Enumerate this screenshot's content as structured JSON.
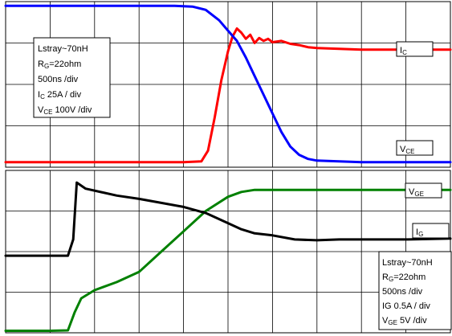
{
  "chart_data": [
    {
      "type": "line",
      "title": "",
      "xlabel": "",
      "ylabel": "",
      "grid": true,
      "xlim": [
        0,
        10
      ],
      "ylim": [
        0,
        4
      ],
      "info_box": {
        "line1": "Lstray~70nH",
        "line2_main": "R",
        "line2_sub": "G",
        "line2_rest": "=22ohm",
        "line3": "500ns /div",
        "line4_main": "I",
        "line4_sub": "C",
        "line4_rest": "  25A / div",
        "line5_main": "V",
        "line5_sub": "CE",
        "line5_rest": " 100V /div"
      },
      "series": [
        {
          "name": "IC",
          "label_main": "I",
          "label_sub": "C",
          "color": "#ff0000",
          "x": [
            0,
            1,
            2,
            3,
            4,
            4.4,
            4.55,
            4.7,
            4.85,
            5.0,
            5.1,
            5.2,
            5.3,
            5.4,
            5.5,
            5.6,
            5.7,
            5.8,
            5.9,
            6.0,
            6.2,
            6.4,
            6.6,
            6.8,
            7.0,
            7.5,
            8.0,
            8.5,
            9.0,
            9.5,
            10
          ],
          "y": [
            0.12,
            0.12,
            0.12,
            0.12,
            0.12,
            0.14,
            0.4,
            1.2,
            2.1,
            2.8,
            3.15,
            3.35,
            3.25,
            3.1,
            3.2,
            3.0,
            3.12,
            3.05,
            3.1,
            3.02,
            3.05,
            2.98,
            2.95,
            2.9,
            2.88,
            2.86,
            2.84,
            2.84,
            2.84,
            2.84,
            2.84
          ]
        },
        {
          "name": "VCE",
          "label_main": "V",
          "label_sub": "CE",
          "color": "#0000ff",
          "x": [
            0,
            1,
            2,
            3,
            3.8,
            4.2,
            4.5,
            4.8,
            5.0,
            5.2,
            5.4,
            5.6,
            5.8,
            6.0,
            6.2,
            6.4,
            6.6,
            6.8,
            7.0,
            7.5,
            8.0,
            9.0,
            10
          ],
          "y": [
            3.9,
            3.9,
            3.9,
            3.9,
            3.9,
            3.88,
            3.8,
            3.55,
            3.3,
            3.05,
            2.65,
            2.2,
            1.75,
            1.3,
            0.85,
            0.5,
            0.3,
            0.2,
            0.16,
            0.14,
            0.12,
            0.12,
            0.12
          ]
        }
      ]
    },
    {
      "type": "line",
      "title": "",
      "xlabel": "",
      "ylabel": "",
      "grid": true,
      "xlim": [
        0,
        10
      ],
      "ylim": [
        0,
        4
      ],
      "info_box": {
        "line1": "Lstray~70nH",
        "line2_main": "R",
        "line2_sub": "G",
        "line2_rest": "=22ohm",
        "line3": "500ns /div",
        "line4": "IG  0.5A / div",
        "line5_main": "V",
        "line5_sub": "GE",
        "line5_rest": " 5V /div"
      },
      "series": [
        {
          "name": "VGE",
          "label_main": "V",
          "label_sub": "GE",
          "color": "#008000",
          "x": [
            0,
            0.5,
            1.0,
            1.4,
            1.55,
            1.7,
            2.0,
            2.5,
            3.0,
            3.5,
            4.0,
            4.5,
            5.0,
            5.3,
            5.6,
            6.0,
            7.0,
            8.0,
            9.0,
            10
          ],
          "y": [
            0.05,
            0.05,
            0.05,
            0.06,
            0.5,
            0.85,
            1.05,
            1.25,
            1.5,
            2.0,
            2.5,
            3.0,
            3.35,
            3.47,
            3.52,
            3.52,
            3.52,
            3.52,
            3.52,
            3.52
          ]
        },
        {
          "name": "IG",
          "label_main": "I",
          "label_sub": "G",
          "color": "#000000",
          "x": [
            0,
            0.5,
            1.0,
            1.4,
            1.52,
            1.6,
            1.8,
            2.5,
            3.0,
            3.5,
            4.0,
            4.5,
            5.0,
            5.3,
            5.6,
            6.0,
            6.5,
            7.0,
            7.5,
            8.0,
            9.0,
            10
          ],
          "y": [
            1.9,
            1.9,
            1.9,
            1.9,
            2.3,
            3.7,
            3.55,
            3.38,
            3.3,
            3.2,
            3.1,
            2.95,
            2.7,
            2.55,
            2.45,
            2.4,
            2.3,
            2.28,
            2.3,
            2.3,
            2.3,
            2.32
          ]
        }
      ]
    }
  ]
}
